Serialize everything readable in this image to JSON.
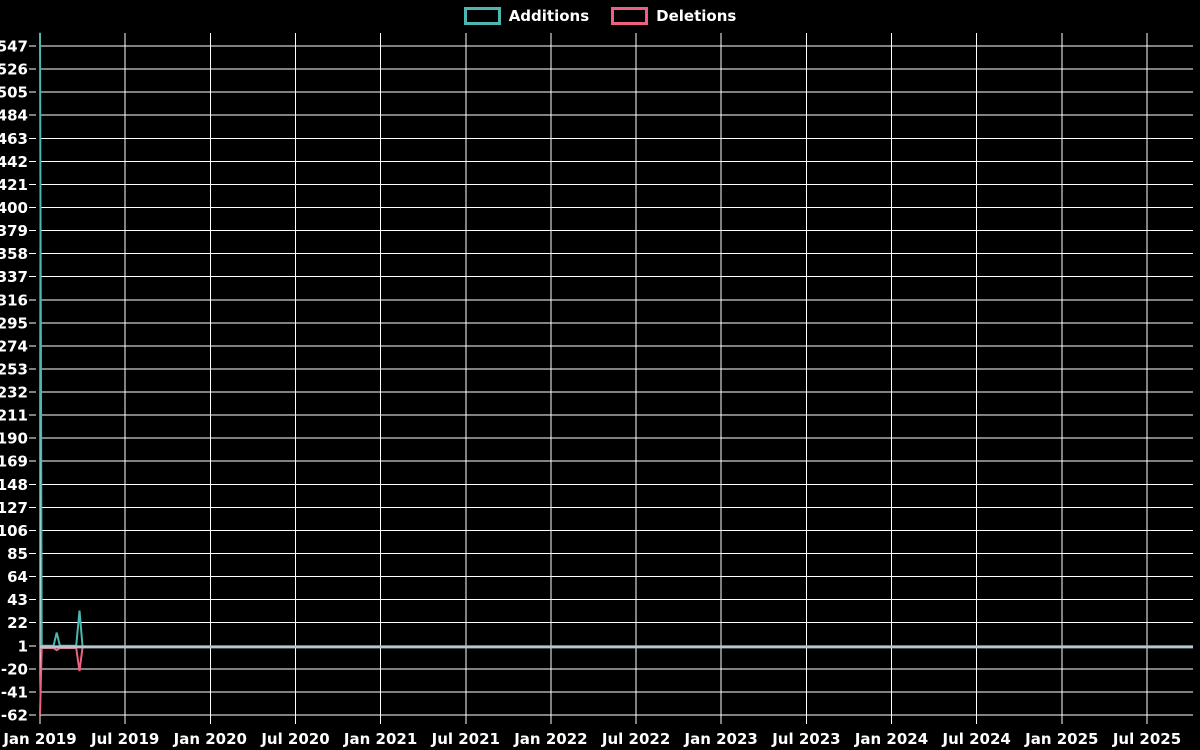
{
  "legend": {
    "items": [
      {
        "label": "Additions",
        "color": "#4db6b1"
      },
      {
        "label": "Deletions",
        "color": "#ec6182"
      }
    ]
  },
  "chart_data": {
    "type": "line",
    "background": "#000000",
    "grid_color": "#ffffff",
    "text_color": "#ffffff",
    "legend_position": "top-center",
    "grid": true,
    "x_axis": {
      "unit": "months_since_jan_2019",
      "tick_labels": [
        "Jan 2019",
        "Jul 2019",
        "Jan 2020",
        "Jul 2020",
        "Jan 2021",
        "Jul 2021",
        "Jan 2022",
        "Jul 2022",
        "Jan 2023",
        "Jul 2023",
        "Jan 2024",
        "Jul 2024",
        "Jan 2025",
        "Jul 2025"
      ],
      "tick_month_offsets": [
        0,
        6,
        12,
        18,
        24,
        30,
        36,
        42,
        48,
        54,
        60,
        66,
        72,
        78
      ]
    },
    "y_axis": {
      "tick_labels": [
        547,
        526,
        505,
        484,
        463,
        442,
        421,
        400,
        379,
        358,
        337,
        316,
        295,
        274,
        253,
        232,
        211,
        190,
        169,
        148,
        127,
        106,
        85,
        64,
        43,
        22,
        1,
        -20,
        -41,
        -62
      ],
      "tick_step": 21,
      "min": -62,
      "max": 559
    },
    "zero_line": {
      "value": 0,
      "color": "#b6c7ce"
    },
    "series": [
      {
        "name": "Additions",
        "color": "#4db6b1",
        "points": [
          [
            0,
            559
          ],
          [
            0.12,
            1
          ],
          [
            0.95,
            1
          ],
          [
            1.18,
            13
          ],
          [
            1.4,
            1
          ],
          [
            2.55,
            1
          ],
          [
            2.78,
            33
          ],
          [
            3.0,
            0
          ],
          [
            81.2,
            0
          ]
        ]
      },
      {
        "name": "Deletions",
        "color": "#ec6182",
        "points": [
          [
            0,
            -62
          ],
          [
            0.12,
            -1
          ],
          [
            0.95,
            -1
          ],
          [
            1.18,
            -3
          ],
          [
            1.4,
            -1
          ],
          [
            2.55,
            -1
          ],
          [
            2.78,
            -22
          ],
          [
            3.0,
            0
          ],
          [
            81.2,
            0
          ]
        ]
      }
    ]
  }
}
